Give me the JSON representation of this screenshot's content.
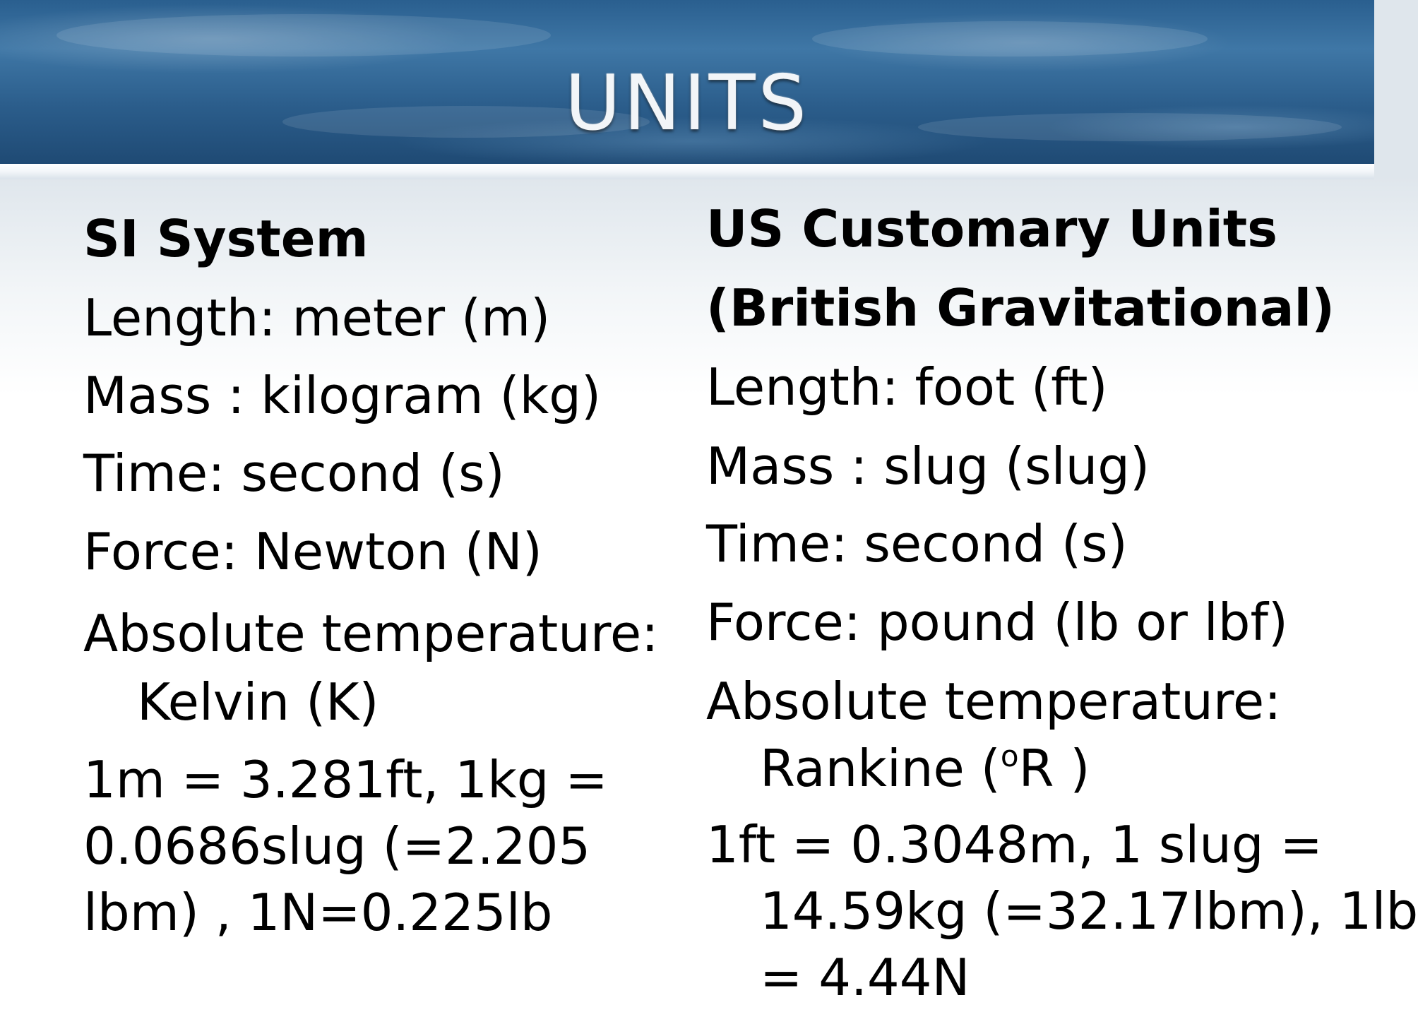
{
  "slide": {
    "title": "UNITS"
  },
  "si": {
    "heading": "SI System",
    "length": "Length: meter (m)",
    "mass": "Mass : kilogram (kg)",
    "time": "Time: second (s)",
    "force": "Force: Newton (N)",
    "temp_label": "Absolute temperature:",
    "temp_unit": "Kelvin (K)",
    "conversion": [
      "1m = 3.281ft, 1kg =",
      "0.0686slug (=2.205",
      "lbm) , 1N=0.225lb"
    ]
  },
  "us": {
    "heading": [
      "US Customary Units",
      "(British Gravitational)"
    ],
    "length": "Length: foot (ft)",
    "mass": "Mass : slug (slug)",
    "time": "Time: second (s)",
    "force": "Force: pound (lb or lbf)",
    "temp_label": "Absolute temperature:",
    "temp_unit_prefix": "Rankine (",
    "temp_unit_degree": "o",
    "temp_unit_suffix": "R )",
    "conversion": [
      "1ft = 0.3048m, 1 slug =",
      "14.59kg (=32.17lbm), 1lb",
      "= 4.44N"
    ]
  }
}
